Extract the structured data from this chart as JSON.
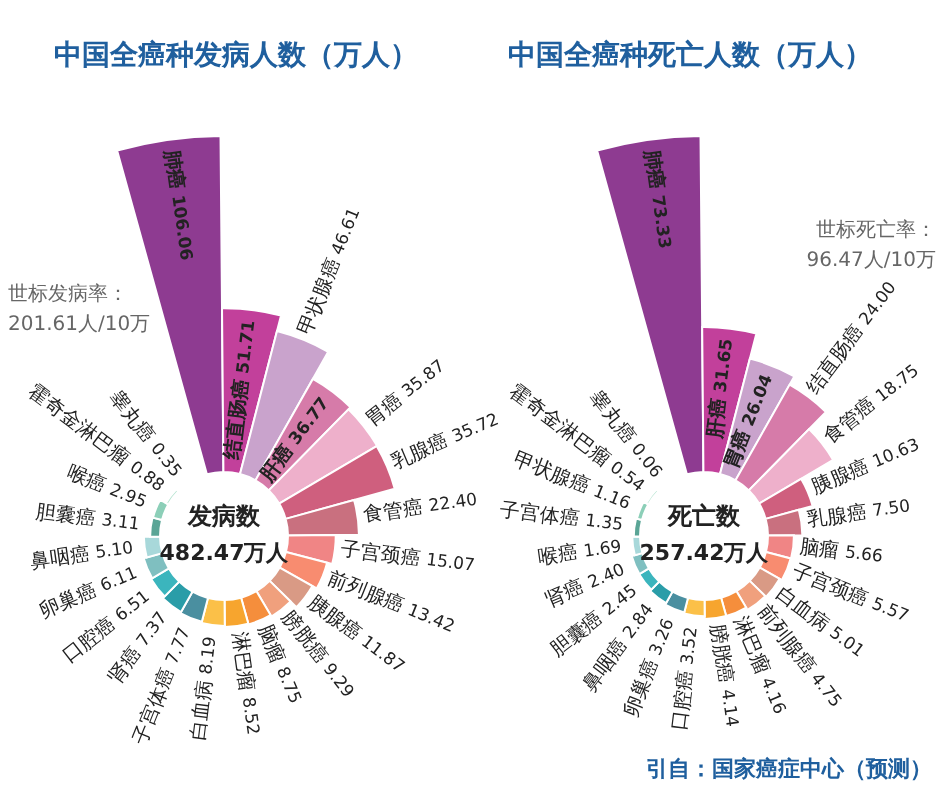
{
  "chart_data": [
    {
      "type": "other",
      "title": "中国全癌种发病人数（万人）",
      "categories": [
        "肺癌",
        "结直肠癌",
        "甲状腺癌",
        "肝癌",
        "胃癌",
        "乳腺癌",
        "食管癌",
        "子宫颈癌",
        "前列腺癌",
        "胰腺癌",
        "膀胱癌",
        "脑瘤",
        "淋巴瘤",
        "白血病",
        "子宫体癌",
        "肾癌",
        "口腔癌",
        "卵巢癌",
        "鼻咽癌",
        "胆囊癌",
        "喉癌",
        "霍奇金淋巴瘤",
        "睾丸癌"
      ],
      "values": [
        106.06,
        51.71,
        46.61,
        36.77,
        35.87,
        35.72,
        22.4,
        15.07,
        13.42,
        11.87,
        9.29,
        8.75,
        8.52,
        8.19,
        7.77,
        7.37,
        6.51,
        6.11,
        5.1,
        3.11,
        2.95,
        0.88,
        0.35
      ],
      "value_labels": [
        "106.06",
        "51.71",
        "46.61",
        "36.77",
        "35.87",
        "35.72",
        "22.40",
        "15.07",
        "13.42",
        "11.87",
        "9.29",
        "8.75",
        "8.52",
        "8.19",
        "7.77",
        "7.37",
        "6.51",
        "6.11",
        "5.10",
        "3.11",
        "2.95",
        "0.88",
        "0.35"
      ],
      "colors": [
        "#8e3b91",
        "#c2409b",
        "#c9a3cc",
        "#d67ba9",
        "#eeb0cb",
        "#cf5f7e",
        "#c9707f",
        "#f08585",
        "#f88c70",
        "#d99a85",
        "#f0a07d",
        "#f58e3c",
        "#f7a52e",
        "#fbc048",
        "#4a8fa0",
        "#2a9da8",
        "#3bb5bd",
        "#7fbfc0",
        "#a8d8da",
        "#5aa596",
        "#8ccfb8",
        "#b5e3d0",
        "#d0efe4"
      ],
      "annotations": [
        "世标发病率：",
        "201.61人/10万",
        "发病数",
        "482.47万人"
      ]
    },
    {
      "type": "other",
      "title": "中国全癌种死亡人数（万人）",
      "categories": [
        "肺癌",
        "肝癌",
        "胃癌",
        "结直肠癌",
        "食管癌",
        "胰腺癌",
        "乳腺癌",
        "脑瘤",
        "子宫颈癌",
        "白血病",
        "前列腺癌",
        "淋巴瘤",
        "膀胱癌",
        "口腔癌",
        "卵巢癌",
        "鼻咽癌",
        "胆囊癌",
        "肾癌",
        "喉癌",
        "子宫体癌",
        "甲状腺癌",
        "霍奇金淋巴瘤",
        "睾丸癌"
      ],
      "values": [
        73.33,
        31.65,
        26.04,
        24.0,
        18.75,
        10.63,
        7.5,
        5.66,
        5.57,
        5.01,
        4.75,
        4.16,
        4.14,
        3.52,
        3.26,
        2.84,
        2.45,
        2.4,
        1.69,
        1.35,
        1.16,
        0.54,
        0.06
      ],
      "value_labels": [
        "73.33",
        "31.65",
        "26.04",
        "24.00",
        "18.75",
        "10.63",
        "7.50",
        "5.66",
        "5.57",
        "5.01",
        "4.75",
        "4.16",
        "4.14",
        "3.52",
        "3.26",
        "2.84",
        "2.45",
        "2.40",
        "1.69",
        "1.35",
        "1.16",
        "0.54",
        "0.06"
      ],
      "colors": [
        "#8e3b91",
        "#c2409b",
        "#c9a3cc",
        "#d67ba9",
        "#eeb0cb",
        "#cf5f7e",
        "#c9707f",
        "#f08585",
        "#f88c70",
        "#d99a85",
        "#f0a07d",
        "#f58e3c",
        "#f7a52e",
        "#fbc048",
        "#4a8fa0",
        "#2a9da8",
        "#3bb5bd",
        "#7fbfc0",
        "#a8d8da",
        "#5aa596",
        "#8ccfb8",
        "#b5e3d0",
        "#d0efe4"
      ],
      "annotations": [
        "世标死亡率：",
        "96.47人/10万",
        "死亡数",
        "257.42万人",
        "引自：国家癌症中心（预测）"
      ]
    }
  ]
}
